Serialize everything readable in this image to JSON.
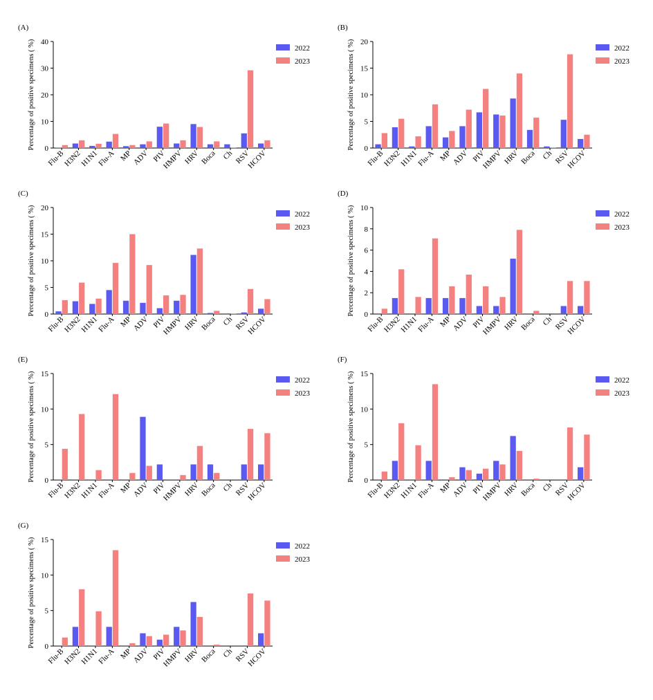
{
  "colors": {
    "2022": "#5a5af0",
    "2023": "#f58080"
  },
  "chart_data": [
    {
      "type": "bar",
      "panel": "(A)",
      "categories": [
        "Flu-B",
        "H3N2",
        "H1N1",
        "Flu-A",
        "MP",
        "ADV",
        "PIV",
        "HMPV",
        "HRV",
        "Boca",
        "Ch",
        "RSV",
        "HCOV"
      ],
      "series": [
        {
          "name": "2022",
          "values": [
            0.1,
            1.7,
            0.8,
            2.4,
            0.7,
            1.4,
            8.0,
            1.7,
            9.0,
            1.4,
            1.4,
            5.5,
            1.7
          ]
        },
        {
          "name": "2023",
          "values": [
            1.1,
            2.9,
            1.6,
            5.3,
            1.1,
            2.5,
            9.2,
            2.9,
            7.9,
            2.5,
            0.2,
            29.2,
            2.9
          ]
        }
      ],
      "ylabel": "Percentage of positive specimens ( %)",
      "ylim": [
        0,
        40
      ],
      "yticks": [
        0,
        10,
        20,
        30,
        40
      ],
      "legend": "top-right"
    },
    {
      "type": "bar",
      "panel": "(B)",
      "categories": [
        "Flu-B",
        "H3N2",
        "H1N1",
        "Flu-A",
        "MP",
        "ADV",
        "PIV",
        "HMPV",
        "HRV",
        "Boca",
        "Ch",
        "RSV",
        "HCOV"
      ],
      "series": [
        {
          "name": "2022",
          "values": [
            0.7,
            3.9,
            0.3,
            4.1,
            2.0,
            4.1,
            6.7,
            6.3,
            9.3,
            3.4,
            0.3,
            5.3,
            1.7
          ]
        },
        {
          "name": "2023",
          "values": [
            2.8,
            5.5,
            2.2,
            8.2,
            3.2,
            7.2,
            11.1,
            6.1,
            14.0,
            5.7,
            0.1,
            17.6,
            2.5
          ]
        }
      ],
      "ylabel": "Percentage of positive specimens ( %)",
      "ylim": [
        0,
        20
      ],
      "yticks": [
        0,
        5,
        10,
        15,
        20
      ],
      "legend": "top-right"
    },
    {
      "type": "bar",
      "panel": "(C)",
      "categories": [
        "Flu-B",
        "H3N2",
        "H1N1",
        "Flu-A",
        "MP",
        "ADV",
        "PIV",
        "HMPV",
        "HRV",
        "Boca",
        "Ch",
        "RSV",
        "HCOV"
      ],
      "series": [
        {
          "name": "2022",
          "values": [
            0.5,
            2.4,
            1.9,
            4.5,
            2.5,
            2.1,
            1.1,
            2.5,
            11.1,
            0.2,
            0.0,
            0.3,
            1.0
          ]
        },
        {
          "name": "2023",
          "values": [
            2.6,
            5.9,
            2.9,
            9.6,
            15.0,
            9.2,
            3.5,
            3.6,
            12.3,
            0.6,
            0.1,
            4.7,
            2.8
          ]
        }
      ],
      "ylabel": "Percentage of positive specimens ( %)",
      "ylim": [
        0,
        20
      ],
      "yticks": [
        0,
        5,
        10,
        15,
        20
      ],
      "legend": "top-right"
    },
    {
      "type": "bar",
      "panel": "(D)",
      "categories": [
        "Flu-B",
        "H3N2",
        "H1N1",
        "Flu-A",
        "MP",
        "ADV",
        "PIV",
        "HMPV",
        "HRV",
        "Boca",
        "Ch",
        "RSV",
        "HCOV"
      ],
      "series": [
        {
          "name": "2022",
          "values": [
            0.0,
            1.5,
            0.0,
            1.5,
            1.5,
            1.5,
            0.75,
            0.75,
            5.2,
            0.0,
            0.0,
            0.75,
            0.75
          ]
        },
        {
          "name": "2023",
          "values": [
            0.5,
            4.2,
            1.6,
            7.1,
            2.6,
            3.7,
            2.6,
            1.6,
            7.9,
            0.3,
            0.0,
            3.1,
            3.1
          ]
        }
      ],
      "ylabel": "Percentage of positive specimens ( %)",
      "ylim": [
        0,
        10
      ],
      "yticks": [
        0,
        2,
        4,
        6,
        8,
        10
      ],
      "legend": "top-right"
    },
    {
      "type": "bar",
      "panel": "(E)",
      "categories": [
        "Flu-B",
        "H3N2",
        "H1N1",
        "Flu-A",
        "MP",
        "ADV",
        "PIV",
        "HMPV",
        "HRV",
        "Boca",
        "Ch",
        "RSV",
        "HCOV"
      ],
      "series": [
        {
          "name": "2022",
          "values": [
            0.0,
            0.0,
            0.0,
            0.0,
            0.0,
            8.9,
            2.2,
            0.0,
            2.2,
            2.2,
            0.0,
            2.2,
            2.2
          ]
        },
        {
          "name": "2023",
          "values": [
            4.4,
            9.3,
            1.4,
            12.1,
            1.0,
            2.0,
            0.0,
            0.7,
            4.8,
            1.0,
            0.0,
            7.2,
            6.6
          ]
        }
      ],
      "ylabel": "Percentage of positive specimens ( %)",
      "ylim": [
        0,
        15
      ],
      "yticks": [
        0,
        5,
        10,
        15
      ],
      "legend": "top-right"
    },
    {
      "type": "bar",
      "panel": "(F)",
      "categories": [
        "Flu-B",
        "H3N2",
        "H1N1",
        "Flu-A",
        "MP",
        "ADV",
        "PIV",
        "HMPV",
        "HRV",
        "Boca",
        "Ch",
        "RSV",
        "HCOV"
      ],
      "series": [
        {
          "name": "2022",
          "values": [
            0.0,
            2.7,
            0.0,
            2.7,
            0.0,
            1.8,
            0.9,
            2.7,
            6.2,
            0.0,
            0.0,
            0.0,
            1.8
          ]
        },
        {
          "name": "2023",
          "values": [
            1.2,
            8.0,
            4.9,
            13.5,
            0.4,
            1.4,
            1.6,
            2.2,
            4.1,
            0.2,
            0.0,
            7.4,
            6.4
          ]
        }
      ],
      "ylabel": "Percentage of positive specimens ( %)",
      "ylim": [
        0,
        15
      ],
      "yticks": [
        0,
        5,
        10,
        15
      ],
      "legend": "top-right"
    },
    {
      "type": "bar",
      "panel": "(G)",
      "categories": [
        "Flu-B",
        "H3N2",
        "H1N1",
        "Flu-A",
        "MP",
        "ADV",
        "PIV",
        "HMPV",
        "HRV",
        "Boca",
        "Ch",
        "RSV",
        "HCOV"
      ],
      "series": [
        {
          "name": "2022",
          "values": [
            0.0,
            2.7,
            0.0,
            2.7,
            0.0,
            1.8,
            0.9,
            2.7,
            6.2,
            0.0,
            0.0,
            0.0,
            1.8
          ]
        },
        {
          "name": "2023",
          "values": [
            1.2,
            8.0,
            4.9,
            13.5,
            0.4,
            1.4,
            1.6,
            2.2,
            4.1,
            0.2,
            0.0,
            7.4,
            6.4
          ]
        }
      ],
      "ylabel": "Percentage of positive specimens ( %)",
      "ylim": [
        0,
        15
      ],
      "yticks": [
        0,
        5,
        10,
        15
      ],
      "legend": "top-right"
    }
  ]
}
